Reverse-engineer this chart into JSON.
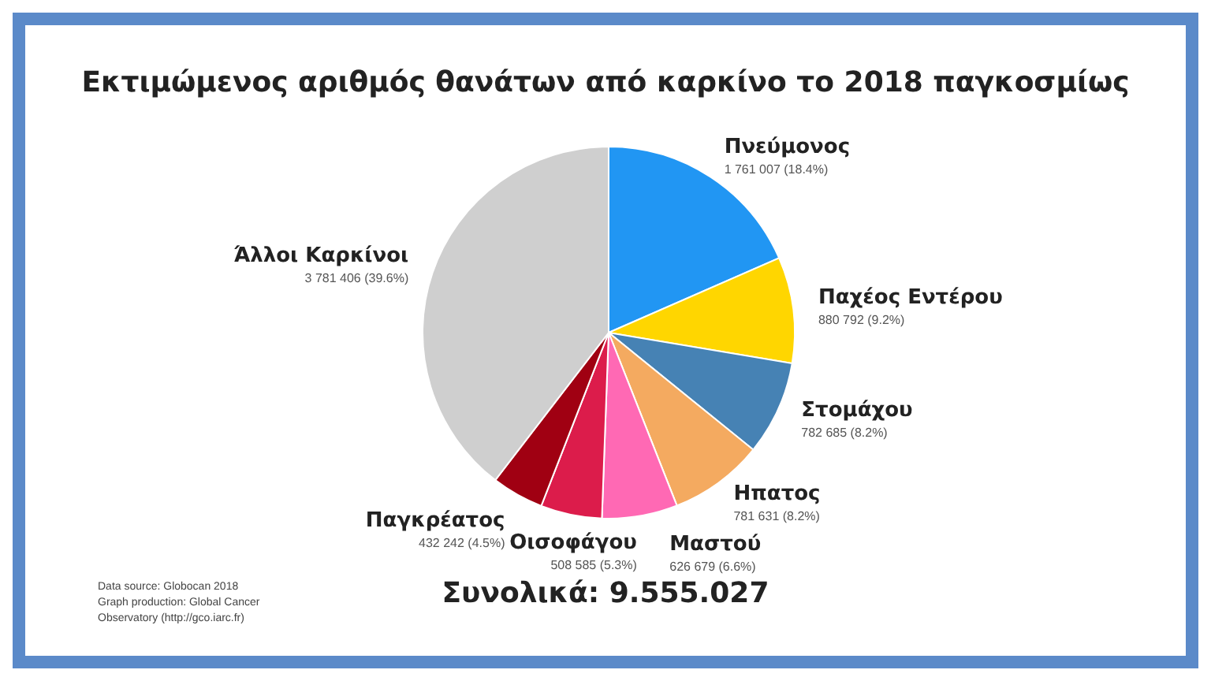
{
  "chart_data": {
    "type": "pie",
    "title": "Εκτιμώμενος αριθμός θανάτων από καρκίνο το 2018 παγκοσμίως",
    "categories": [
      "Πνεύμονος",
      "Παχέος Εντέρου",
      "Στομάχου",
      "Ηπατος",
      "Μαστού",
      "Οισοφάγου",
      "Παγκρέατος",
      "Άλλοι Καρκίνοι"
    ],
    "values": [
      1761007,
      880792,
      782685,
      781631,
      626679,
      508585,
      432242,
      3781406
    ],
    "value_labels": [
      "1 761 007 (18.4%)",
      "880 792 (9.2%)",
      "782 685 (8.2%)",
      "781 631 (8.2%)",
      "626 679 (6.6%)",
      "508 585 (5.3%)",
      "432 242 (4.5%)",
      "3 781 406 (39.6%)"
    ],
    "colors": [
      "#2196f3",
      "#ffd600",
      "#4682b4",
      "#f4aa60",
      "#ff69b4",
      "#dc1c4b",
      "#a00012",
      "#cfcfcf"
    ],
    "annotations": [
      "Συνολικά: 9.555.027",
      "Data source: Globocan 2018\nGraph production: Global Cancer\nObservatory (http://gco.iarc.fr)"
    ],
    "legend": false
  }
}
